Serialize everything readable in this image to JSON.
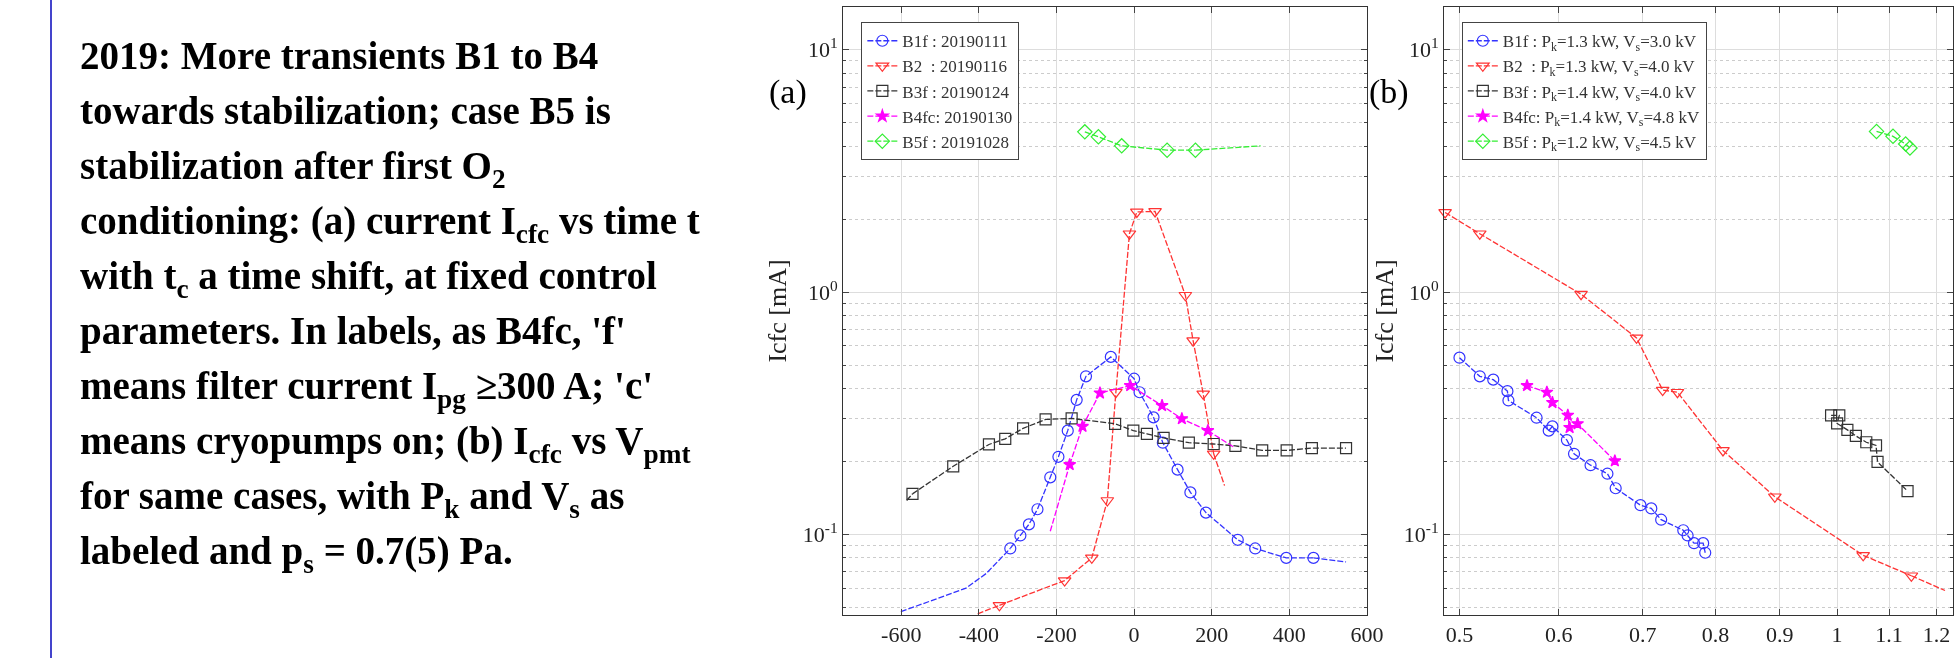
{
  "chart_data": [
    {
      "type": "other",
      "title": "2019: More transients B1 to B4 towards stabilization; case B5 is stabilization after first O$_{2}$ conditioning: (a) current I$_{cfc}$ vs time t with t$_{c}$ a time shift, at fixed control parameters. In labels, as B4fc, 'f' means filter current  I$_{pg}$ ≥300 A; 'c' means cryopumps on; (b) I$_{cfc}$ vs V$_{pmt}$ for same cases, with P$_{k}$ and V$_{s}$ as labeled and p$_{s}$ = 0.7(5) Pa."
    },
    {
      "type": "line",
      "ylabel": "Icfc [mA]",
      "annotations": [
        "(a)"
      ],
      "log": "y",
      "grid": true,
      "legend": "top left",
      "line_style": "dashed",
      "xlim": [
        -750,
        600
      ],
      "xticks": [
        -600,
        -400,
        -200,
        0,
        200,
        400,
        600
      ],
      "ylim": [
        0.0465,
        15
      ],
      "yticks": [
        {
          "value": 0.1,
          "label": "10$^{-1}$"
        },
        {
          "value": 1,
          "label": "10$^{0}$"
        },
        {
          "value": 10,
          "label": "10$^{1}$"
        }
      ],
      "series": [
        {
          "name": "B1f : 20190111",
          "color": "#3333ff",
          "marker": "circle",
          "x": [
            -319,
            -293,
            -271,
            -249,
            -216,
            -195,
            -171,
            -148,
            -124,
            -60,
            0,
            14,
            50,
            74,
            112,
            145,
            185,
            267,
            312,
            392,
            462
          ],
          "values": [
            0.0875,
            0.099,
            0.11,
            0.127,
            0.172,
            0.209,
            0.268,
            0.359,
            0.449,
            0.54,
            0.439,
            0.386,
            0.304,
            0.239,
            0.185,
            0.149,
            0.123,
            0.095,
            0.0875,
            0.08,
            0.08
          ]
        },
        {
          "name": "B2  : 20190116",
          "color": "#ff3333",
          "marker": "triangle",
          "x": [
            -347,
            -179,
            -109,
            -69,
            -47,
            -12,
            7,
            54,
            132,
            152,
            178,
            205
          ],
          "values": [
            0.051,
            0.0645,
            0.08,
            0.138,
            0.386,
            1.74,
            2.14,
            2.15,
            0.97,
            0.63,
            0.38,
            0.215
          ]
        },
        {
          "name": "B3f : 20190124",
          "color": "#333333",
          "marker": "square",
          "x": [
            -571,
            -466,
            -374,
            -332,
            -286,
            -228,
            -161,
            -49,
            -2,
            33,
            76,
            141,
            205,
            261,
            330,
            393,
            458,
            546
          ],
          "values": [
            0.147,
            0.191,
            0.235,
            0.248,
            0.274,
            0.298,
            0.301,
            0.286,
            0.268,
            0.26,
            0.25,
            0.239,
            0.236,
            0.232,
            0.222,
            0.222,
            0.227,
            0.227
          ]
        },
        {
          "name": "B4fc: 20190130",
          "color": "#ff00ff",
          "marker": "star",
          "x": [
            -166,
            -133,
            -88,
            -10,
            72,
            123,
            190
          ],
          "values": [
            0.194,
            0.279,
            0.383,
            0.411,
            0.34,
            0.3,
            0.268
          ]
        },
        {
          "name": "B5f : 20191028",
          "color": "#33ee33",
          "marker": "diamond",
          "x": [
            -127,
            -92,
            -32,
            85,
            158
          ],
          "values": [
            4.58,
            4.37,
            4.01,
            3.85,
            3.85
          ]
        },
        {
          "color": "#3333ff",
          "marker": "none",
          "x": [
            -601,
            -433,
            -381,
            -319
          ],
          "values": [
            0.048,
            0.06,
            0.069,
            0.0875
          ]
        },
        {
          "color": "#3333ff",
          "marker": "none",
          "x": [
            462,
            546
          ],
          "values": [
            0.08,
            0.077
          ]
        },
        {
          "color": "#ff3333",
          "marker": "none",
          "x": [
            -403,
            -347
          ],
          "values": [
            0.047,
            0.051
          ]
        },
        {
          "color": "#ff3333",
          "marker": "none",
          "x": [
            205,
            233
          ],
          "values": [
            0.215,
            0.159
          ]
        },
        {
          "color": "#333333",
          "marker": "none",
          "x": [
            -586,
            -571
          ],
          "values": [
            0.138,
            0.147
          ]
        },
        {
          "color": "#ff00ff",
          "marker": "none",
          "x": [
            -216,
            -166
          ],
          "values": [
            0.103,
            0.194
          ]
        },
        {
          "color": "#ff00ff",
          "marker": "none",
          "x": [
            190,
            257
          ],
          "values": [
            0.268,
            0.229
          ]
        },
        {
          "color": "#33ee33",
          "marker": "none",
          "x": [
            158,
            326
          ],
          "values": [
            3.85,
            4.01
          ]
        }
      ]
    },
    {
      "type": "line",
      "ylabel": "Icfc [mA]",
      "annotations": [
        "(b)"
      ],
      "log": "xy",
      "grid": true,
      "legend": "top left",
      "line_style": "dashed",
      "xlim": [
        0.486,
        1.237
      ],
      "xticks": [
        0.5,
        0.6,
        0.7,
        0.8,
        0.9,
        1,
        1.1,
        1.2
      ],
      "ylim": [
        0.0465,
        15
      ],
      "yticks": [
        {
          "value": 0.1,
          "label": "10$^{-1}$"
        },
        {
          "value": 1,
          "label": "10$^{0}$"
        },
        {
          "value": 10,
          "label": "10$^{1}$"
        }
      ],
      "series": [
        {
          "name": "B1f : P$_{k}$=1.3 kW, V$_{s}$=3.0 kV",
          "color": "#3333ff",
          "marker": "circle",
          "x": [
            0.5,
            0.519,
            0.532,
            0.546,
            0.547,
            0.576,
            0.589,
            0.593,
            0.609,
            0.617,
            0.636,
            0.656,
            0.666,
            0.697,
            0.711,
            0.724,
            0.754,
            0.76,
            0.769,
            0.782,
            0.785
          ],
          "values": [
            0.536,
            0.449,
            0.435,
            0.39,
            0.357,
            0.303,
            0.268,
            0.279,
            0.245,
            0.215,
            0.193,
            0.178,
            0.155,
            0.132,
            0.128,
            0.115,
            0.104,
            0.099,
            0.092,
            0.092,
            0.084
          ]
        },
        {
          "name": "B2  : P$_{k}$=1.3 kW, V$_{s}$=4.0 kV",
          "color": "#ff3333",
          "marker": "triangle",
          "x": [
            0.487,
            0.519,
            0.625,
            0.692,
            0.726,
            0.746,
            0.811,
            0.892,
            1.049,
            1.146
          ],
          "values": [
            2.13,
            1.74,
            0.98,
            0.647,
            0.394,
            0.386,
            0.222,
            0.143,
            0.082,
            0.0675
          ]
        },
        {
          "name": "B3f : P$_{k}$=1.4 kW, V$_{s}$=4.0 kV",
          "color": "#333333",
          "marker": "square",
          "x": [
            0.989,
            1.004,
            1.0,
            1.019,
            1.035,
            1.055,
            1.074,
            1.077,
            1.138
          ],
          "values": [
            0.31,
            0.31,
            0.287,
            0.27,
            0.255,
            0.24,
            0.233,
            0.199,
            0.151
          ]
        },
        {
          "name": "B4fc: P$_{k}$=1.4 kW, V$_{s}$=4.8 kV",
          "color": "#ff00ff",
          "marker": "star",
          "x": [
            0.566,
            0.587,
            0.593,
            0.61,
            0.612,
            0.621,
            0.665
          ],
          "values": [
            0.411,
            0.386,
            0.35,
            0.31,
            0.276,
            0.286,
            0.201
          ]
        },
        {
          "name": "B5f : P$_{k}$=1.2 kW, V$_{s}$=4.5 kV",
          "color": "#33ee33",
          "marker": "diamond",
          "x": [
            1.075,
            1.108,
            1.134,
            1.143
          ],
          "values": [
            4.6,
            4.39,
            4.08,
            3.93
          ]
        },
        {
          "color": "#ff3333",
          "marker": "none",
          "x": [
            1.146,
            1.219
          ],
          "values": [
            0.0675,
            0.0587
          ]
        }
      ]
    }
  ]
}
